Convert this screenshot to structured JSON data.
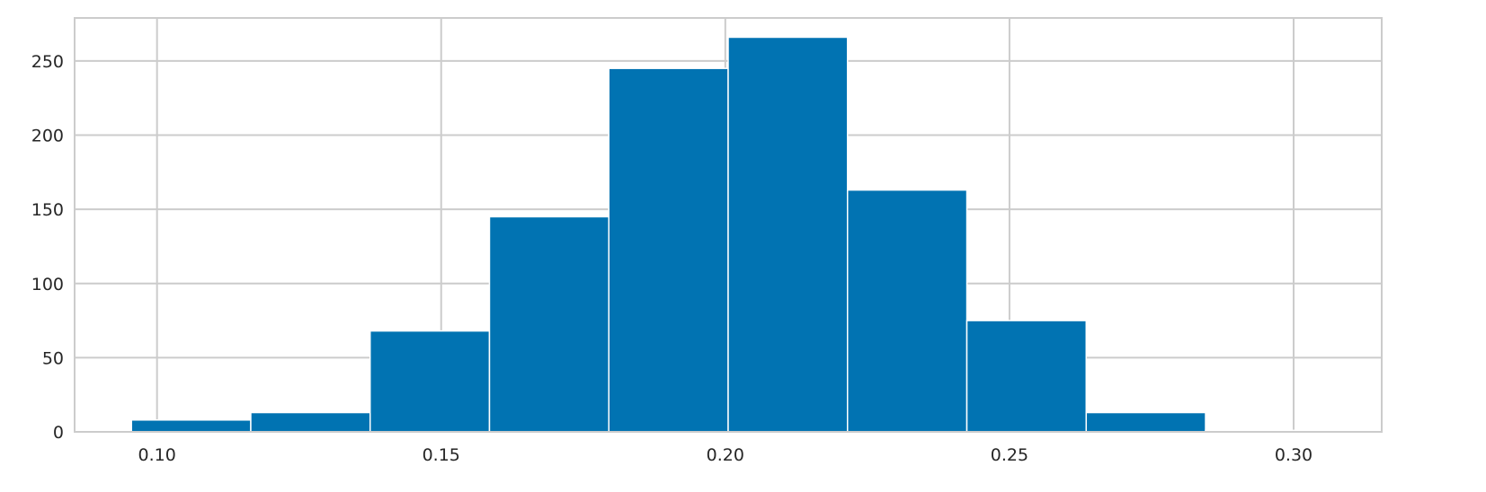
{
  "chart_data": {
    "type": "bar",
    "subtype": "histogram",
    "title": "",
    "xlabel": "",
    "ylabel": "",
    "bin_edges": [
      0.0955,
      0.1165,
      0.1375,
      0.1585,
      0.1795,
      0.2005,
      0.2215,
      0.2425,
      0.2635,
      0.2845,
      0.3055
    ],
    "values": [
      8,
      13,
      68,
      145,
      245,
      266,
      163,
      75,
      13,
      1
    ],
    "xlim": [
      0.0855,
      0.3155
    ],
    "ylim": [
      0,
      279
    ],
    "xticks": [
      0.1,
      0.15,
      0.2,
      0.25,
      0.3
    ],
    "xtick_labels": [
      "0.10",
      "0.15",
      "0.20",
      "0.25",
      "0.30"
    ],
    "yticks": [
      0,
      50,
      100,
      150,
      200,
      250
    ],
    "ytick_labels": [
      "0",
      "50",
      "100",
      "150",
      "200",
      "250"
    ],
    "grid": true,
    "legend": "none",
    "colors": {
      "bar": "#0173b2",
      "grid": "#cccccc",
      "spine": "#cccccc",
      "text": "#262626",
      "background": "#ffffff"
    }
  }
}
